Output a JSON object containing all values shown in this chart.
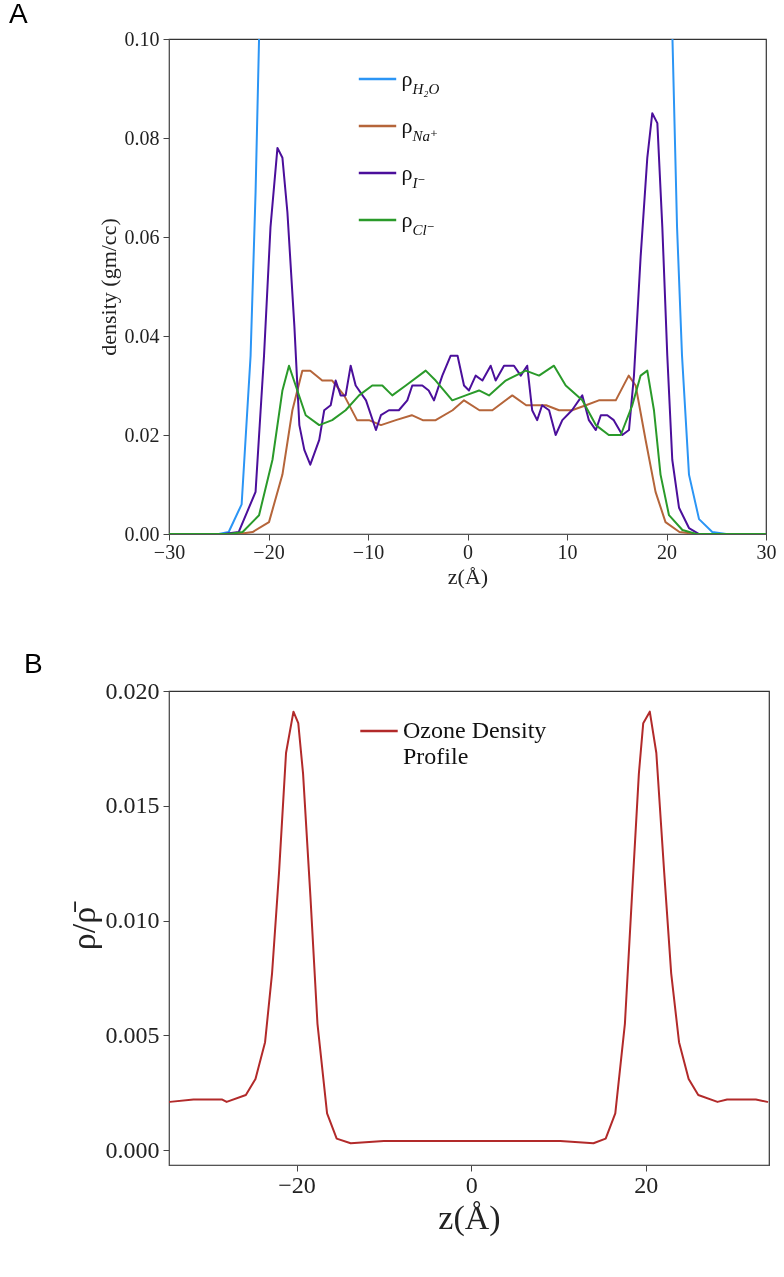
{
  "chart_data": [
    {
      "type": "line",
      "title": "A",
      "xlabel": "z(Å)",
      "ylabel": "density (gm/cc)",
      "xlim": [
        -30,
        30
      ],
      "xticks": [
        -30,
        -20,
        -10,
        0,
        10,
        20,
        30
      ],
      "ylim": [
        0,
        0.1
      ],
      "yticks": [
        {
          "value": 0,
          "label": "0.00"
        },
        {
          "value": 0.02,
          "label": "0.02"
        },
        {
          "value": 0.04,
          "label": "0.04"
        },
        {
          "value": 0.06,
          "label": "0.06"
        },
        {
          "value": 0.08,
          "label": "0.08"
        },
        {
          "value": 0.1,
          "label": "0.10"
        }
      ],
      "legend": "top",
      "grid": false,
      "series": [
        {
          "name": "ρ$_{H₂O}$",
          "color": "#2b95f5",
          "x": [
            -30,
            -25,
            -24,
            -22.7,
            -21.8,
            -21.3,
            -20.95,
            0,
            20.6,
            21.06,
            21.56,
            22.26,
            23.27,
            24.6,
            26,
            30
          ],
          "values": [
            0,
            0,
            0.0004,
            0.006,
            0.036,
            0.069,
            0.1,
            null,
            0.1,
            0.062,
            0.036,
            0.012,
            0.003,
            0.0004,
            0,
            0
          ]
        },
        {
          "name": "ρ$_{Na⁺}$",
          "color": "#b5653a",
          "x": [
            -30,
            -23,
            -21.6,
            -19.95,
            -18.6,
            -17.6,
            -16.6,
            -15.8,
            -14.6,
            -13.6,
            -12.4,
            -11.1,
            -9.9,
            -8.7,
            -7.2,
            -5.6,
            -4.5,
            -3.2,
            -1.5,
            -0.35,
            1.2,
            2.5,
            4.5,
            5.9,
            7.9,
            9.2,
            10.5,
            11.9,
            13.2,
            14.9,
            16.2,
            16.9,
            17.9,
            18.9,
            19.9,
            21.3,
            23,
            30
          ],
          "values": [
            0,
            0,
            0.0004,
            0.0024,
            0.012,
            0.025,
            0.033,
            0.033,
            0.031,
            0.031,
            0.028,
            0.023,
            0.023,
            0.022,
            0.023,
            0.024,
            0.023,
            0.023,
            0.025,
            0.027,
            0.025,
            0.025,
            0.028,
            0.026,
            0.026,
            0.025,
            0.025,
            0.026,
            0.027,
            0.027,
            0.032,
            0.03,
            0.019,
            0.0085,
            0.0024,
            0.0004,
            0,
            0
          ]
        },
        {
          "name": "ρ$_{I⁻}$",
          "color": "#4b0f9b",
          "x": [
            -30,
            -24.5,
            -23,
            -21.3,
            -20.45,
            -19.8,
            -19.1,
            -18.6,
            -18.1,
            -17.4,
            -16.9,
            -16.4,
            -15.8,
            -14.9,
            -14.4,
            -13.75,
            -13.25,
            -12.75,
            -12.25,
            -11.74,
            -11.24,
            -10.2,
            -9.2,
            -8.7,
            -7.9,
            -6.9,
            -6.05,
            -5.55,
            -4.54,
            -3.9,
            -3.37,
            -2.53,
            -1.7,
            -1.0,
            -0.35,
            0.15,
            0.82,
            1.5,
            2.33,
            2.83,
            3.67,
            4.67,
            5.35,
            6.0,
            6.5,
            7.0,
            7.5,
            8.2,
            8.86,
            9.53,
            10.5,
            11.54,
            12.2,
            12.9,
            13.4,
            14.05,
            14.7,
            15.56,
            16.23,
            16.73,
            17.4,
            18.07,
            18.57,
            19.08,
            19.58,
            20.08,
            20.58,
            21.26,
            22.26,
            23.27,
            30
          ],
          "values": [
            0,
            0,
            0.0004,
            0.0085,
            0.036,
            0.062,
            0.078,
            0.076,
            0.065,
            0.042,
            0.022,
            0.017,
            0.014,
            0.019,
            0.025,
            0.026,
            0.031,
            0.028,
            0.028,
            0.034,
            0.03,
            0.027,
            0.021,
            0.024,
            0.025,
            0.025,
            0.027,
            0.03,
            0.03,
            0.029,
            0.027,
            0.032,
            0.036,
            0.036,
            0.03,
            0.029,
            0.032,
            0.031,
            0.034,
            0.031,
            0.034,
            0.034,
            0.032,
            0.034,
            0.025,
            0.023,
            0.026,
            0.025,
            0.02,
            0.023,
            0.025,
            0.028,
            0.023,
            0.021,
            0.024,
            0.024,
            0.023,
            0.02,
            0.021,
            0.032,
            0.056,
            0.076,
            0.085,
            0.083,
            0.062,
            0.036,
            0.015,
            0.0053,
            0.0012,
            0,
            0
          ]
        },
        {
          "name": "ρ$_{Cl⁻}$",
          "color": "#2a9a2a",
          "x": [
            -30,
            -24,
            -22.6,
            -20.95,
            -19.6,
            -18.6,
            -17.94,
            -17.27,
            -16.26,
            -14.9,
            -13.6,
            -12.25,
            -10.9,
            -9.57,
            -8.56,
            -7.56,
            -6.2,
            -4.2,
            -3.2,
            -1.53,
            -0.18,
            1.16,
            2.16,
            3.84,
            5.85,
            7.19,
            8.69,
            9.87,
            11.54,
            12.9,
            14.2,
            15.4,
            16.56,
            17.4,
            18.07,
            18.74,
            19.4,
            20.25,
            21.6,
            23,
            30
          ],
          "values": [
            0,
            0,
            0.0004,
            0.0038,
            0.015,
            0.029,
            0.034,
            0.03,
            0.024,
            0.022,
            0.023,
            0.025,
            0.028,
            0.03,
            0.03,
            0.028,
            0.03,
            0.033,
            0.031,
            0.027,
            0.028,
            0.029,
            0.028,
            0.031,
            0.033,
            0.032,
            0.034,
            0.03,
            0.027,
            0.022,
            0.02,
            0.02,
            0.026,
            0.032,
            0.033,
            0.025,
            0.012,
            0.0038,
            0.0008,
            0,
            0
          ]
        }
      ]
    },
    {
      "type": "line",
      "title": "B",
      "xlabel": "z(Å)",
      "ylabel": "ρ/ρ̄",
      "xlim": [
        -34.6,
        34.1
      ],
      "xticks": [
        -20,
        0,
        20
      ],
      "ylim": [
        -0.00065,
        0.02
      ],
      "yticks": [
        {
          "value": 0,
          "label": "0.000"
        },
        {
          "value": 0.005,
          "label": "0.005"
        },
        {
          "value": 0.01,
          "label": "0.010"
        },
        {
          "value": 0.015,
          "label": "0.015"
        },
        {
          "value": 0.02,
          "label": "0.020"
        }
      ],
      "legend": "top",
      "grid": false,
      "series": [
        {
          "name": "Ozone Density Profile",
          "color": "#b22a2a",
          "x": [
            -34.5,
            -31.8,
            -28.5,
            -28.0,
            -25.8,
            -24.7,
            -23.6,
            -22.8,
            -22.0,
            -21.2,
            -20.35,
            -19.8,
            -19.25,
            -18.4,
            -17.6,
            -16.5,
            -15.4,
            -13.8,
            -10,
            -2.3,
            2.3,
            10.2,
            14.0,
            15.4,
            16.5,
            17.6,
            18.4,
            19.2,
            19.7,
            20.45,
            21.2,
            22.1,
            22.9,
            23.8,
            24.9,
            26,
            28.2,
            29.3,
            32.6,
            33.9
          ],
          "values": [
            0.0021,
            0.0022,
            0.0022,
            0.0021,
            0.0024,
            0.0031,
            0.0047,
            0.0077,
            0.0121,
            0.0173,
            0.0191,
            0.0186,
            0.0164,
            0.011,
            0.0055,
            0.0016,
            0.0005,
            0.0003,
            0.0004,
            0.0004,
            0.0004,
            0.0004,
            0.0003,
            0.0005,
            0.0016,
            0.0055,
            0.011,
            0.0164,
            0.0186,
            0.0191,
            0.0173,
            0.0121,
            0.0077,
            0.0047,
            0.0031,
            0.0024,
            0.0021,
            0.0022,
            0.0022,
            0.0021
          ]
        }
      ]
    }
  ]
}
